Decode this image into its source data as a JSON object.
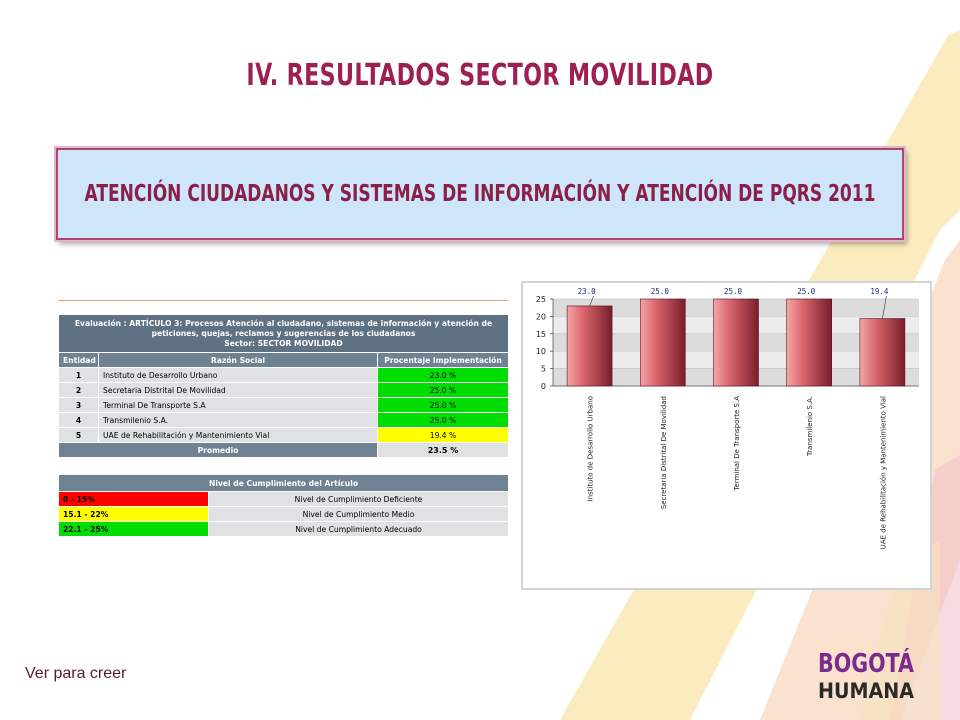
{
  "page": {
    "title": "IV. RESULTADOS SECTOR MOVILIDAD",
    "banner": "ATENCIÓN CIUDADANOS Y SISTEMAS DE INFORMACIÓN Y ATENCIÓN DE PQRS 2011",
    "slogan": "Ver para creer",
    "logo_top": "BOGOTÁ",
    "logo_bottom": "HUMANA"
  },
  "colors": {
    "title": "#9e1f54",
    "banner_bg": "#cfe6fa",
    "deficient": "#ff0000",
    "medium": "#ffff00",
    "adequate": "#00dd00",
    "bar": "#c95b63"
  },
  "table": {
    "eval_lines": [
      "Evaluación : ARTÍCULO 3: Procesos Atención al ciudadano, sistemas de información y atención de",
      "peticiones, quejas, reclamos y sugerencias de los ciudadanos",
      "Sector: SECTOR MOVILIDAD"
    ],
    "headers": [
      "Entidad",
      "Razón Social",
      "Procentaje Implementación"
    ],
    "rows": [
      {
        "id": "1",
        "name": "Instituto de Desarrollo Urbano",
        "pct": "23.0 %",
        "level": "adequate"
      },
      {
        "id": "2",
        "name": "Secretaria Distrital De Movilidad",
        "pct": "25.0 %",
        "level": "adequate"
      },
      {
        "id": "3",
        "name": "Terminal De Transporte S.A",
        "pct": "25.0 %",
        "level": "adequate"
      },
      {
        "id": "4",
        "name": "Transmilenio S.A.",
        "pct": "25.0 %",
        "level": "adequate"
      },
      {
        "id": "5",
        "name": "UAE de Rehabilitación y Mantenimiento Vial",
        "pct": "19.4 %",
        "level": "medium"
      }
    ],
    "average_label": "Promedio",
    "average_value": "23.5 %"
  },
  "legend": {
    "title": "Nivel de Cumplimiento del Artículo",
    "items": [
      {
        "range": "0 - 15%",
        "label": "Nivel de Cumplimiento Deficiente",
        "level": "deficient"
      },
      {
        "range": "15.1 - 22%",
        "label": "Nivel de Cumplimiento Medio",
        "level": "medium"
      },
      {
        "range": "22.1 - 25%",
        "label": "Nivel de Cumplimiento Adecuado",
        "level": "adequate"
      }
    ]
  },
  "chart_data": {
    "type": "bar",
    "categories": [
      "Instituto de Desarrollo Urbano",
      "Secretaria Distrital De Movilidad",
      "Terminal De Transporte S.A",
      "Transmilenio S.A.",
      "UAE de Rehabilitación y Mantenimiento Vial"
    ],
    "values": [
      23.0,
      25.0,
      25.0,
      25.0,
      19.4
    ],
    "data_labels": [
      "23.0",
      "25.0",
      "25.0",
      "25.0",
      "19.4"
    ],
    "ylim": [
      0,
      25
    ],
    "yticks": [
      0,
      5,
      10,
      15,
      20,
      25
    ],
    "grid": true,
    "legend": "none"
  }
}
